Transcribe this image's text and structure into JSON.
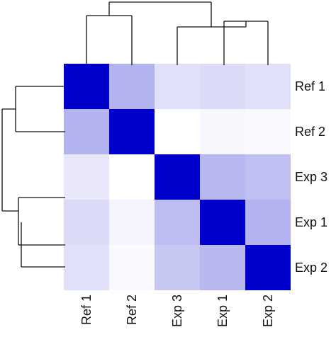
{
  "chart_data": {
    "type": "heatmap",
    "rows": [
      "Ref 1",
      "Ref 2",
      "Exp 3",
      "Exp 1",
      "Exp 2"
    ],
    "columns": [
      "Ref 1",
      "Ref 2",
      "Exp 3",
      "Exp 1",
      "Exp 2"
    ],
    "values": [
      [
        1.0,
        0.3,
        0.12,
        0.14,
        0.12
      ],
      [
        0.3,
        1.0,
        0.0,
        0.03,
        0.02
      ],
      [
        0.09,
        0.0,
        1.0,
        0.28,
        0.25
      ],
      [
        0.14,
        0.04,
        0.26,
        1.0,
        0.3
      ],
      [
        0.12,
        0.02,
        0.22,
        0.28,
        1.0
      ]
    ],
    "color_low": "#ffffff",
    "color_high": "#0000cc",
    "row_dendrogram": true,
    "column_dendrogram": true
  }
}
